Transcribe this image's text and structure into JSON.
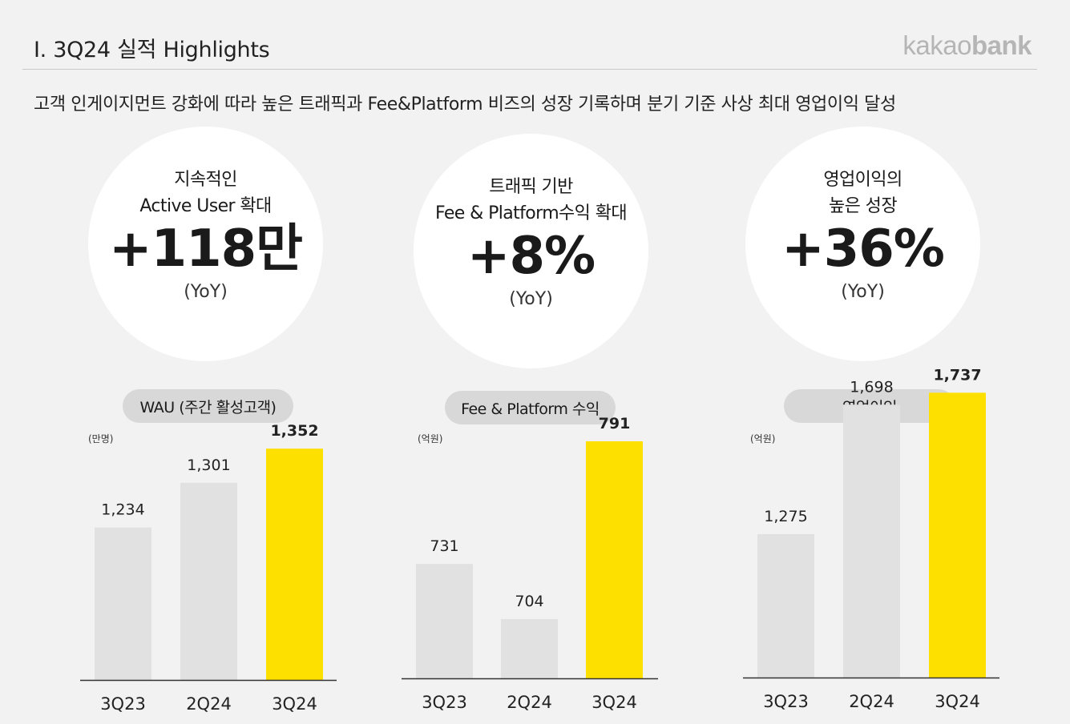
{
  "header": {
    "title": "I. 3Q24 실적 Highlights",
    "logo_light": "kakao",
    "logo_bold": "bank",
    "subtitle": "고객 인게이지먼트 강화에 따라 높은 트래픽과 Fee&Platform 비즈의 성장 기록하며 분기 기준 사상 최대 영업이익 달성"
  },
  "highlights": [
    {
      "line1": "지속적인",
      "line2": "Active User 확대",
      "value": "+118만",
      "note": "(YoY)"
    },
    {
      "line1": "트래픽 기반",
      "line2": "Fee & Platform수익 확대",
      "value": "+8%",
      "note": "(YoY)"
    },
    {
      "line1": "영업이익의",
      "line2": "높은 성장",
      "value": "+36%",
      "note": "(YoY)"
    }
  ],
  "colors": {
    "bar_gray": "#e1e1e1",
    "bar_highlight": "#fee000",
    "axis": "#333333"
  },
  "chart_data": [
    {
      "type": "bar",
      "title": "WAU (주간 활성고객)",
      "unit": "(만명)",
      "categories": [
        "3Q23",
        "2Q24",
        "3Q24"
      ],
      "values": [
        1234,
        1301,
        1352
      ],
      "labels": [
        "1,234",
        "1,301",
        "1,352"
      ],
      "highlight_index": 2
    },
    {
      "type": "bar",
      "title": "Fee & Platform 수익",
      "unit": "(억원)",
      "categories": [
        "3Q23",
        "2Q24",
        "3Q24"
      ],
      "values": [
        731,
        704,
        791
      ],
      "labels": [
        "731",
        "704",
        "791"
      ],
      "highlight_index": 2
    },
    {
      "type": "bar",
      "title": "영업이익",
      "unit": "(억원)",
      "categories": [
        "3Q23",
        "2Q24",
        "3Q24"
      ],
      "values": [
        1275,
        1698,
        1737
      ],
      "labels": [
        "1,275",
        "1,698",
        "1,737"
      ],
      "highlight_index": 2
    }
  ]
}
